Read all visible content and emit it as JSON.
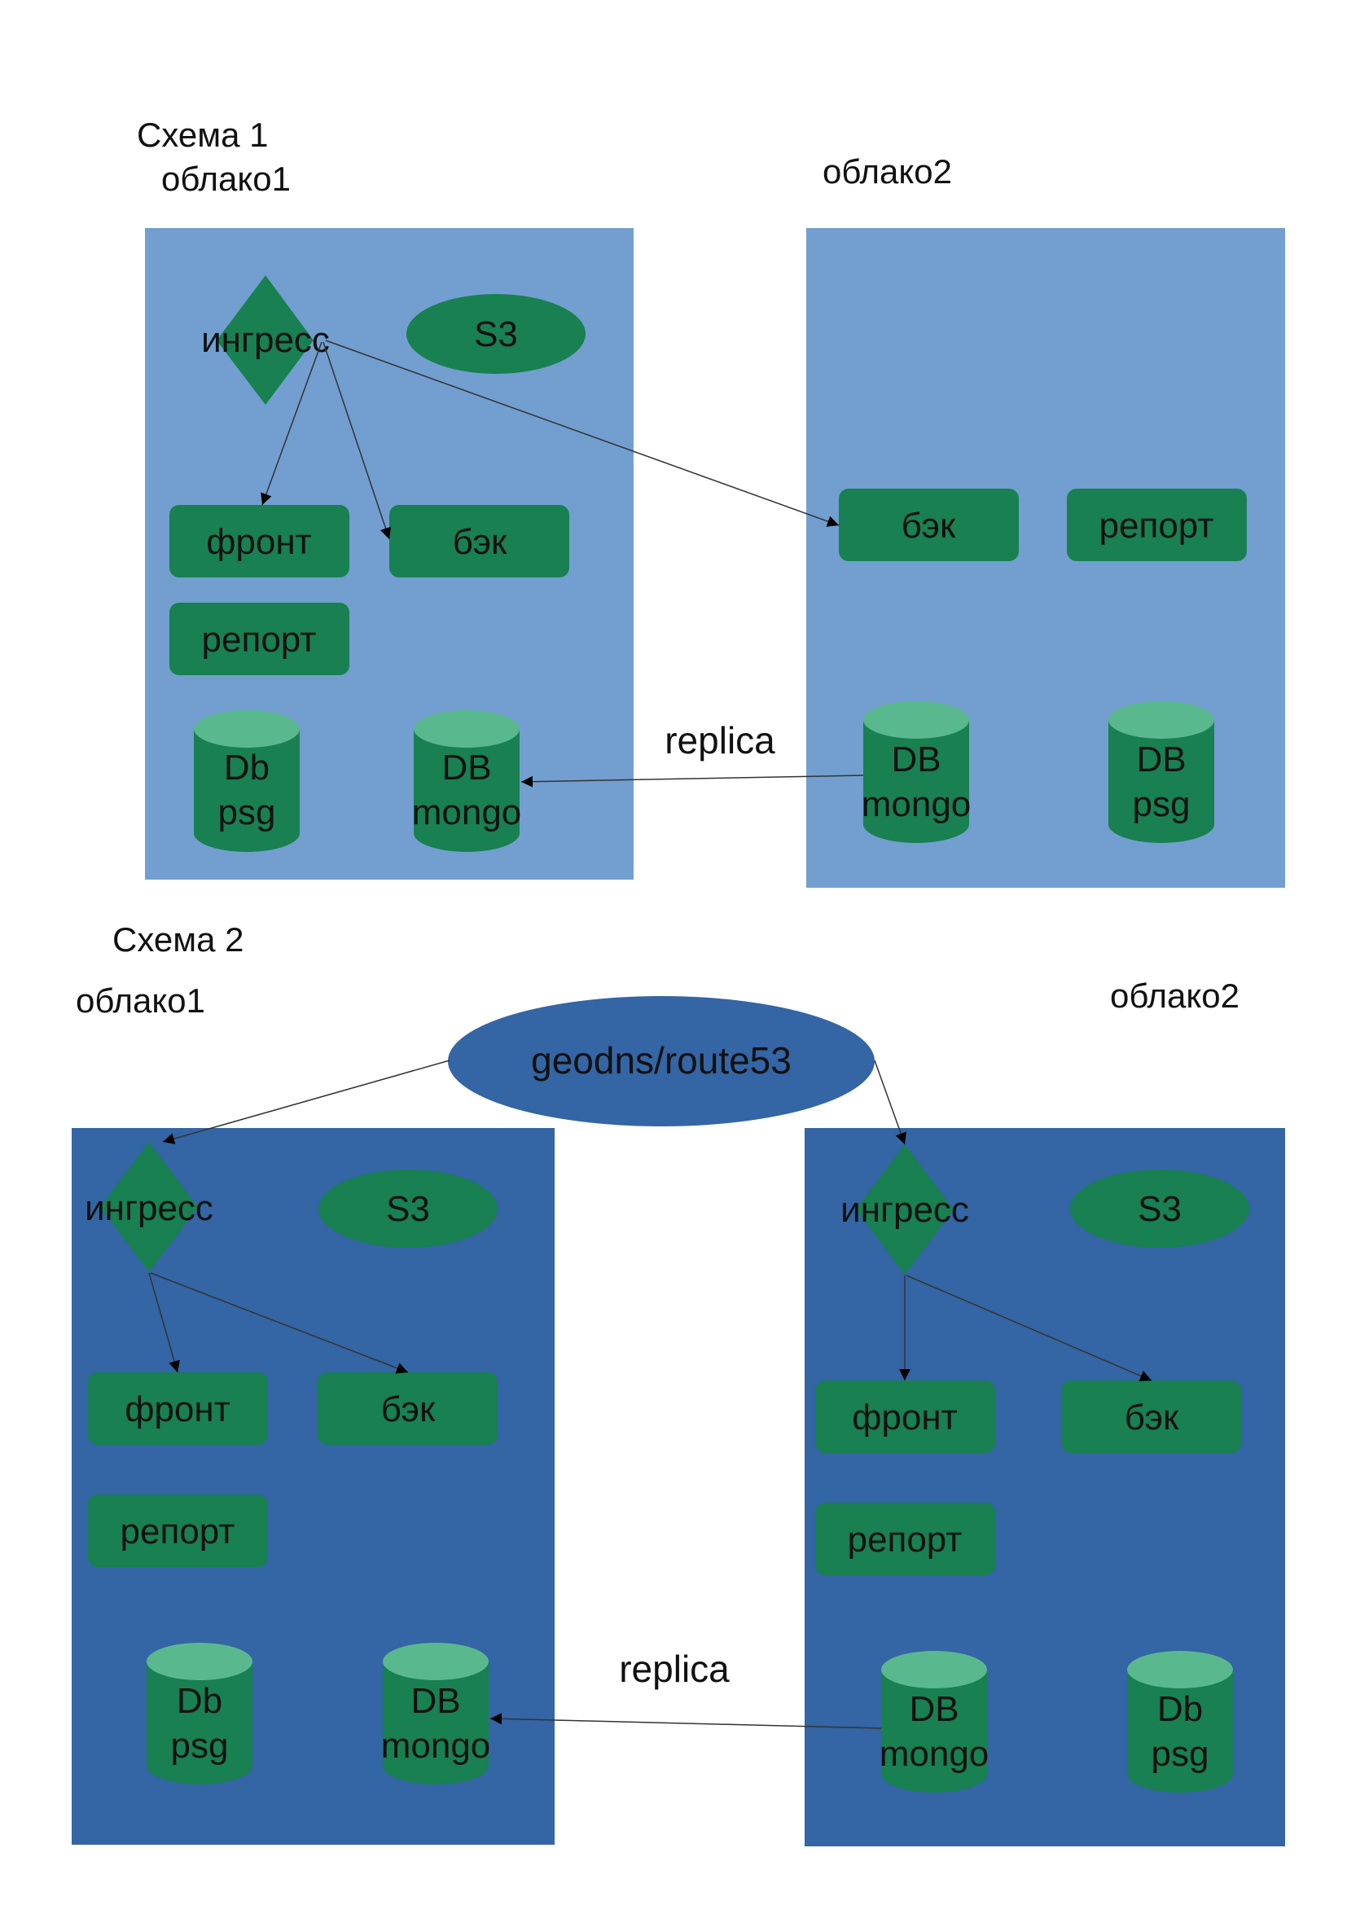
{
  "colors": {
    "cloud_light": "#729fcf",
    "cloud_dark": "#3465a4",
    "node_green": "#188051",
    "cylinder_top": "#5ab88e",
    "geodns": "#3465a4",
    "arrow": "#333333"
  },
  "schema1": {
    "title": "Схема 1",
    "cloud1": {
      "label": "облако1",
      "ingress": "ингресс",
      "s3": "S3",
      "front": "фронт",
      "back": "бэк",
      "report": "репорт",
      "db_psg": [
        "Db",
        "psg"
      ],
      "db_mongo": [
        "DB",
        "mongo"
      ]
    },
    "cloud2": {
      "label": "облако2",
      "back": "бэк",
      "report": "репорт",
      "db_mongo": [
        "DB",
        "mongo"
      ],
      "db_psg": [
        "DB",
        "psg"
      ]
    },
    "replica": "replica"
  },
  "schema2": {
    "title": "Схема 2",
    "geodns": "geodns/route53",
    "cloud1": {
      "label": "облако1",
      "ingress": "ингресс",
      "s3": "S3",
      "front": "фронт",
      "back": "бэк",
      "report": "репорт",
      "db_psg": [
        "Db",
        "psg"
      ],
      "db_mongo": [
        "DB",
        "mongo"
      ]
    },
    "cloud2": {
      "label": "облако2",
      "ingress": "ингресс",
      "s3": "S3",
      "front": "фронт",
      "back": "бэк",
      "report": "репорт",
      "db_mongo": [
        "DB",
        "mongo"
      ],
      "db_psg": [
        "Db",
        "psg"
      ]
    },
    "replica": "replica"
  }
}
